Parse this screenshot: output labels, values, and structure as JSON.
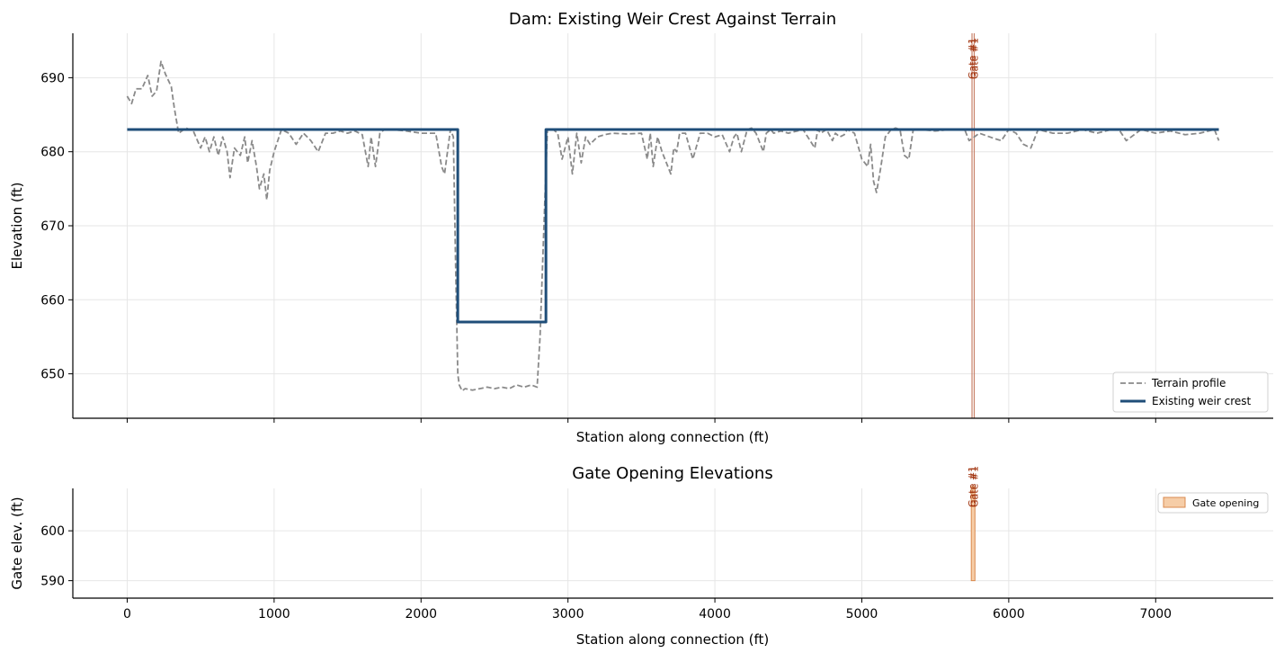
{
  "chart_data": [
    {
      "type": "line",
      "title": "Dam: Existing Weir Crest Against Terrain",
      "xlabel": "Station along connection (ft)",
      "ylabel": "Elevation (ft)",
      "xlim": [
        -370,
        7800
      ],
      "ylim": [
        644,
        696
      ],
      "xticks": [
        0,
        1000,
        2000,
        3000,
        4000,
        5000,
        6000,
        7000
      ],
      "xtick_labels": [
        "0",
        "1000",
        "2000",
        "3000",
        "4000",
        "5000",
        "6000",
        "7000"
      ],
      "yticks": [
        650,
        660,
        670,
        680,
        690
      ],
      "ytick_labels": [
        "650",
        "660",
        "670",
        "680",
        "690"
      ],
      "grid": true,
      "legend_position": "lower-right",
      "gate_line_color": "#c9826b",
      "series": [
        {
          "name": "Terrain profile",
          "style": "dashed",
          "color": "#8a8a8a",
          "x": [
            0,
            30,
            60,
            100,
            140,
            170,
            200,
            230,
            260,
            300,
            320,
            350,
            400,
            450,
            500,
            530,
            560,
            590,
            620,
            650,
            680,
            700,
            730,
            770,
            800,
            820,
            850,
            880,
            900,
            930,
            950,
            970,
            1000,
            1050,
            1100,
            1150,
            1200,
            1250,
            1300,
            1350,
            1400,
            1450,
            1500,
            1550,
            1600,
            1640,
            1660,
            1690,
            1720,
            1750,
            1800,
            1900,
            2000,
            2100,
            2140,
            2160,
            2200,
            2220,
            2235,
            2250,
            2260,
            2280,
            2300,
            2350,
            2400,
            2450,
            2500,
            2550,
            2600,
            2650,
            2700,
            2750,
            2790,
            2810,
            2840,
            2860,
            2900,
            2930,
            2960,
            2980,
            3000,
            3030,
            3060,
            3090,
            3120,
            3150,
            3200,
            3250,
            3300,
            3400,
            3500,
            3540,
            3560,
            3580,
            3610,
            3640,
            3670,
            3700,
            3720,
            3740,
            3760,
            3800,
            3850,
            3900,
            3950,
            4000,
            4050,
            4100,
            4130,
            4150,
            4180,
            4220,
            4250,
            4280,
            4300,
            4330,
            4350,
            4380,
            4400,
            4450,
            4500,
            4600,
            4680,
            4700,
            4720,
            4760,
            4800,
            4820,
            4850,
            4880,
            4900,
            4950,
            5000,
            5040,
            5060,
            5080,
            5100,
            5130,
            5160,
            5200,
            5230,
            5260,
            5290,
            5320,
            5350,
            5400,
            5500,
            5600,
            5650,
            5700,
            5730,
            5800,
            5900,
            5950,
            6000,
            6050,
            6100,
            6150,
            6200,
            6300,
            6400,
            6500,
            6600,
            6700,
            6750,
            6800,
            6900,
            7000,
            7100,
            7200,
            7300,
            7400,
            7430
          ],
          "y": [
            687.5,
            686.5,
            688.5,
            688.5,
            690.3,
            687.5,
            688.2,
            692.2,
            690.5,
            688.8,
            686.0,
            682.5,
            683.2,
            682.8,
            680.5,
            682.0,
            680.0,
            682.0,
            679.5,
            682.0,
            680.0,
            676.5,
            680.5,
            679.5,
            682.0,
            678.5,
            681.5,
            678.0,
            675.0,
            677.0,
            673.5,
            677.5,
            680.0,
            683.0,
            682.5,
            681.0,
            682.5,
            681.5,
            680.0,
            682.5,
            682.5,
            682.8,
            682.5,
            682.8,
            682.3,
            678.0,
            682.0,
            678.0,
            682.5,
            683.0,
            683.0,
            682.8,
            682.5,
            682.5,
            678.0,
            677.0,
            683.0,
            682.0,
            665.0,
            650.0,
            648.5,
            647.7,
            648.0,
            647.8,
            648.0,
            648.2,
            648.0,
            648.2,
            648.0,
            648.5,
            648.2,
            648.5,
            648.2,
            655.0,
            672.0,
            683.0,
            683.0,
            682.5,
            679.0,
            680.5,
            682.0,
            677.0,
            682.5,
            678.5,
            682.0,
            681.0,
            682.0,
            682.3,
            682.5,
            682.4,
            682.5,
            679.0,
            682.5,
            678.0,
            682.0,
            680.0,
            678.5,
            677.0,
            680.5,
            680.0,
            682.5,
            682.5,
            679.0,
            682.5,
            682.5,
            682.0,
            682.3,
            680.0,
            682.0,
            682.5,
            680.0,
            683.0,
            683.2,
            682.5,
            681.5,
            680.0,
            682.5,
            683.0,
            682.5,
            682.8,
            682.5,
            683.0,
            680.5,
            683.0,
            682.5,
            683.0,
            681.5,
            682.5,
            682.0,
            682.3,
            683.0,
            682.5,
            679.0,
            678.0,
            681.0,
            676.0,
            674.5,
            678.0,
            682.0,
            683.0,
            683.2,
            683.0,
            679.5,
            679.0,
            683.0,
            683.0,
            682.8,
            683.0,
            683.0,
            683.0,
            681.5,
            682.5,
            681.8,
            681.5,
            683.0,
            682.5,
            681.0,
            680.5,
            683.0,
            682.5,
            682.5,
            683.0,
            682.5,
            683.0,
            683.0,
            681.5,
            683.0,
            682.5,
            682.8,
            682.3,
            682.5,
            683.0,
            681.5
          ]
        },
        {
          "name": "Existing weir crest",
          "style": "solid",
          "color": "#1f4e79",
          "x": [
            0,
            2250,
            2250,
            2850,
            2850,
            7430
          ],
          "y": [
            683,
            683,
            657,
            657,
            683,
            683
          ]
        }
      ],
      "annotations": [
        {
          "text": "Gate #1",
          "x": 5750
        },
        {
          "text": "Gate #1",
          "x": 5765
        }
      ]
    },
    {
      "type": "bar",
      "title": "Gate Opening Elevations",
      "xlabel": "Station along connection (ft)",
      "ylabel": "Gate elev. (ft)",
      "xlim": [
        -370,
        7800
      ],
      "ylim": [
        586.5,
        608.5
      ],
      "xticks": [
        0,
        1000,
        2000,
        3000,
        4000,
        5000,
        6000,
        7000
      ],
      "xtick_labels": [
        "0",
        "1000",
        "2000",
        "3000",
        "4000",
        "5000",
        "6000",
        "7000"
      ],
      "yticks": [
        590,
        600
      ],
      "ytick_labels": [
        "590",
        "600"
      ],
      "grid": true,
      "legend_position": "upper-right",
      "series": [
        {
          "name": "Gate opening",
          "color": "#f6cda7",
          "edge_color": "#d98a4f",
          "rects": [
            {
              "x0": 5745,
              "x1": 5770,
              "y0": 590,
              "y1": 609
            }
          ]
        }
      ],
      "annotations": [
        {
          "text": "Gate #1",
          "x": 5750
        },
        {
          "text": "Gate #1",
          "x": 5765
        }
      ]
    }
  ]
}
